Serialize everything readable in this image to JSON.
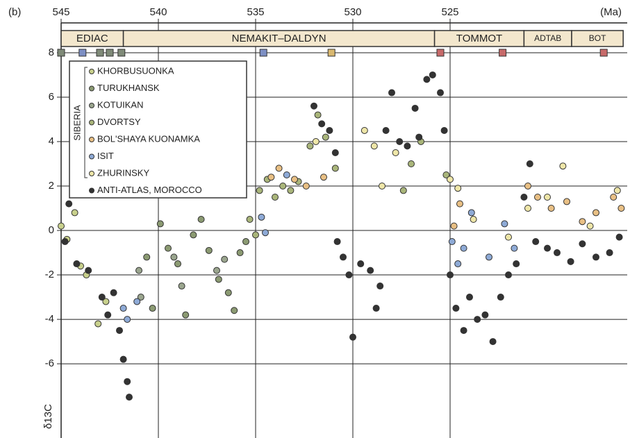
{
  "chart_data": {
    "type": "scatter",
    "panel_label": "(b)",
    "x_label": "(Ma)",
    "y_label": "δ13C",
    "xlim": [
      545,
      515.75
    ],
    "ylim": [
      -9.34,
      10.06
    ],
    "xticks": [
      545,
      540,
      535,
      530,
      525
    ],
    "yticks": [
      8,
      6,
      4,
      2,
      0,
      -2,
      -4,
      -6
    ],
    "grid": true,
    "stages": [
      {
        "label": "EDIAC",
        "start": 545,
        "end": 541.8
      },
      {
        "label": "NEMAKIT–DALDYN",
        "start": 541.8,
        "end": 525.8
      },
      {
        "label": "TOMMOT",
        "start": 525.8,
        "end": 521.2
      },
      {
        "label": "ADTAB",
        "start": 521.2,
        "end": 518.75
      },
      {
        "label": "BOT",
        "start": 518.75,
        "end": 516.1
      }
    ],
    "tie_points": {
      "x": [
        545,
        543.9,
        543.0,
        542.5,
        541.9,
        534.6,
        531.1,
        525.5,
        522.3,
        517.1
      ],
      "y": 8,
      "colors": [
        "#7f8a78",
        "#7d8fc4",
        "#7f8a78",
        "#7f8a78",
        "#7f8a78",
        "#7d8fc4",
        "#d9b870",
        "#c76a6a",
        "#c76a6a",
        "#c76a6a"
      ]
    },
    "legend_group": "SIBERIA",
    "series": [
      {
        "name": "KHORBUSUONKA",
        "color": "#c8d08c",
        "x": [
          545.0,
          544.7,
          544.3,
          544.0,
          543.7,
          543.1,
          542.7
        ],
        "y": [
          0.2,
          -0.4,
          0.8,
          -1.6,
          -2.0,
          -4.2,
          -3.2
        ]
      },
      {
        "name": "TURUKHANSK",
        "color": "#8b9a72",
        "x": [
          540.6,
          540.3,
          539.9,
          539.5,
          539.0,
          538.6,
          538.2,
          537.8,
          537.4,
          536.9,
          536.4,
          536.1,
          535.8,
          535.5
        ],
        "y": [
          -1.2,
          -3.5,
          0.3,
          -0.8,
          -1.5,
          -3.8,
          -0.2,
          0.5,
          -0.9,
          -2.2,
          -2.8,
          -3.6,
          -1.0,
          -0.5
        ]
      },
      {
        "name": "KOTUIKAN",
        "color": "#9aa58e",
        "x": [
          541.0,
          540.9,
          539.2,
          538.8,
          537.0,
          536.6
        ],
        "y": [
          -1.8,
          -3.0,
          -1.2,
          -2.5,
          -1.8,
          -1.3
        ]
      },
      {
        "name": "DVORTSY",
        "color": "#a9b57a",
        "x": [
          535.3,
          535.0,
          534.8,
          534.4,
          534.0,
          533.6,
          533.2,
          532.8,
          532.2,
          531.8,
          531.4,
          530.9,
          527.4,
          527.0,
          526.5,
          525.2
        ],
        "y": [
          0.5,
          -0.2,
          1.8,
          2.3,
          1.5,
          2.0,
          1.8,
          2.2,
          3.8,
          5.2,
          4.2,
          2.8,
          1.8,
          3.0,
          4.0,
          2.5
        ]
      },
      {
        "name": "BOL'SHAYA KUONAMKA",
        "color": "#e8bf84",
        "x": [
          534.2,
          533.8,
          533.0,
          532.4,
          531.5,
          524.8,
          524.5,
          521.0,
          520.5,
          519.8,
          519.0,
          518.2,
          517.5,
          516.6,
          516.2
        ],
        "y": [
          2.4,
          2.8,
          2.3,
          2.0,
          2.4,
          0.2,
          1.2,
          2.0,
          1.5,
          1.0,
          1.3,
          0.4,
          0.8,
          1.5,
          1.0
        ]
      },
      {
        "name": "ISIT",
        "color": "#8eaad6",
        "x": [
          541.8,
          541.6,
          541.1,
          534.7,
          534.5,
          533.4,
          524.9,
          524.6,
          524.3,
          523.9,
          523.0,
          522.2,
          521.7
        ],
        "y": [
          -3.5,
          -4.0,
          -3.2,
          0.6,
          -0.1,
          2.5,
          -0.5,
          -1.5,
          -0.8,
          0.8,
          -1.2,
          0.3,
          -0.8
        ]
      },
      {
        "name": "ZHURINSKY",
        "color": "#eee6a8",
        "x": [
          531.9,
          529.4,
          528.9,
          528.5,
          527.8,
          525.0,
          524.6,
          523.8,
          522.0,
          521.0,
          520.0,
          519.2,
          517.8,
          516.4
        ],
        "y": [
          4.0,
          4.5,
          3.8,
          2.0,
          3.5,
          2.3,
          1.9,
          0.5,
          -0.3,
          1.0,
          1.5,
          2.9,
          0.2,
          1.8
        ]
      },
      {
        "name": "ANTI-ATLAS, MOROCCO",
        "color": "#333333",
        "x": [
          544.8,
          544.6,
          544.2,
          543.6,
          542.9,
          542.6,
          542.3,
          542.0,
          541.8,
          541.6,
          541.5,
          530.8,
          530.5,
          530.2,
          530.0,
          529.6,
          529.1,
          528.8,
          528.6,
          528.3,
          528.0,
          527.6,
          527.2,
          526.8,
          526.6,
          526.2,
          525.9,
          525.5,
          525.3,
          525.0,
          524.7,
          524.3,
          524.0,
          523.6,
          523.2,
          522.8,
          522.4,
          522.0,
          521.6,
          521.2,
          520.9,
          520.6,
          520.0,
          519.5,
          518.8,
          518.2,
          517.5,
          516.8,
          516.3,
          532.0,
          531.6,
          531.2,
          530.9
        ],
        "y": [
          -0.5,
          1.2,
          -1.5,
          -1.8,
          -3.0,
          -3.8,
          -2.8,
          -4.5,
          -5.8,
          -6.8,
          -7.5,
          -0.5,
          -1.2,
          -2.0,
          -4.8,
          -1.5,
          -1.8,
          -3.5,
          -2.5,
          4.5,
          6.2,
          4.0,
          3.8,
          5.5,
          4.2,
          6.8,
          7.0,
          6.2,
          4.5,
          -2.0,
          -3.5,
          -4.5,
          -3.0,
          -4.0,
          -3.8,
          -5.0,
          -3.0,
          -2.0,
          -1.5,
          1.5,
          3.0,
          -0.5,
          -0.8,
          -1.0,
          -1.4,
          -0.6,
          -1.2,
          -1.0,
          -0.3,
          5.6,
          4.8,
          4.5,
          3.5
        ]
      }
    ]
  }
}
